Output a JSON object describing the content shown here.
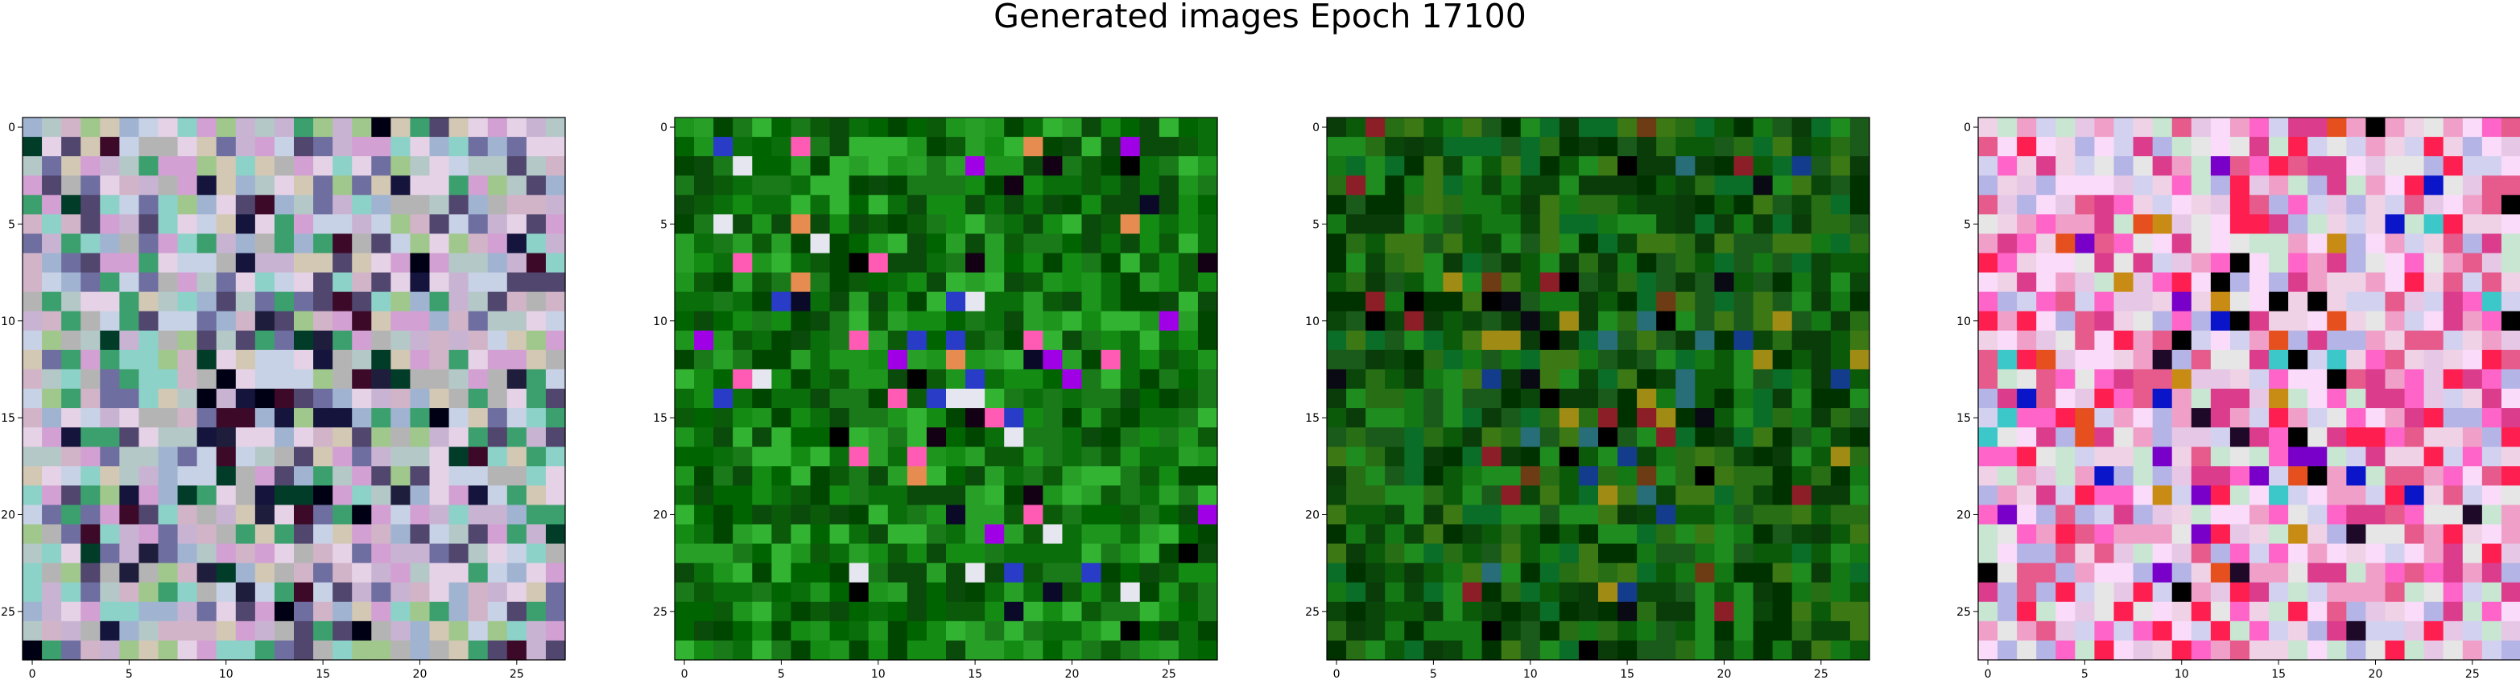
{
  "title": "Generated images Epoch 17100",
  "chart_data": [
    {
      "type": "heatmap",
      "description_key": "panel-1",
      "grid": [
        28,
        28
      ],
      "xticks": [
        "0",
        "5",
        "10",
        "15",
        "20",
        "25"
      ],
      "yticks": [
        "0",
        "5",
        "10",
        "15",
        "20",
        "25"
      ],
      "palette": [
        "#c8b4d2",
        "#b4c8c8",
        "#d2c8b4",
        "#a0b4d2",
        "#c8d2e6",
        "#d2a0d2",
        "#8cd2c8",
        "#b4b4b4",
        "#e6d2e6",
        "#6e6ea0",
        "#a0c88c",
        "#d2b4c8",
        "#3ca06e",
        "#50466e"
      ],
      "dark_cells": [
        "#14143c",
        "#000014",
        "#3c0a28",
        "#003c28",
        "#1e1e3c"
      ],
      "seed": 11
    },
    {
      "type": "heatmap",
      "description_key": "panel-2",
      "grid": [
        28,
        28
      ],
      "xticks": [
        "0",
        "5",
        "10",
        "15",
        "20",
        "25"
      ],
      "yticks": [
        "0",
        "5",
        "10",
        "15",
        "20",
        "25"
      ],
      "palette": [
        "#0a6e0a",
        "#148c14",
        "#0a5a0a",
        "#1e961e",
        "#006400",
        "#28a028",
        "#0a4a0a",
        "#1a7a1a",
        "#004600",
        "#32b432"
      ],
      "dark_cells": [
        "#000000",
        "#0a0a28",
        "#140014",
        "#a000e6",
        "#ff5ab4",
        "#283cc8",
        "#e6e6f0",
        "#e68c50"
      ],
      "seed": 23
    },
    {
      "type": "heatmap",
      "description_key": "panel-3",
      "grid": [
        28,
        28
      ],
      "xticks": [
        "0",
        "5",
        "10",
        "15",
        "20",
        "25"
      ],
      "yticks": [
        "0",
        "5",
        "10",
        "15",
        "20",
        "25"
      ],
      "palette": [
        "#0a5a0a",
        "#147814",
        "#0a460a",
        "#1e8c1e",
        "#003200",
        "#286e14",
        "#0a3c0a",
        "#3c7814",
        "#1a5a1a",
        "#0a6e28"
      ],
      "dark_cells": [
        "#000000",
        "#0a0a14",
        "#8c1e28",
        "#143c8c",
        "#a08c14",
        "#6e3c14",
        "#286e78"
      ],
      "seed": 37
    },
    {
      "type": "heatmap",
      "description_key": "panel-4",
      "grid": [
        28,
        28
      ],
      "xticks": [
        "0",
        "5",
        "10",
        "15",
        "20",
        "25"
      ],
      "yticks": [
        "0",
        "5",
        "10",
        "15",
        "20",
        "25"
      ],
      "palette": [
        "#e6c8e6",
        "#f0d2e6",
        "#d2d2f0",
        "#f0a0c8",
        "#e65a8c",
        "#ff1e50",
        "#dc3c8c",
        "#c8e6d2",
        "#fadcfa",
        "#e6e6e6",
        "#ff64c8",
        "#b4b4e6"
      ],
      "dark_cells": [
        "#1e0a28",
        "#000000",
        "#0a14c8",
        "#7800c8",
        "#c88c14",
        "#e6501e",
        "#3cc8c8"
      ],
      "seed": 53
    }
  ]
}
